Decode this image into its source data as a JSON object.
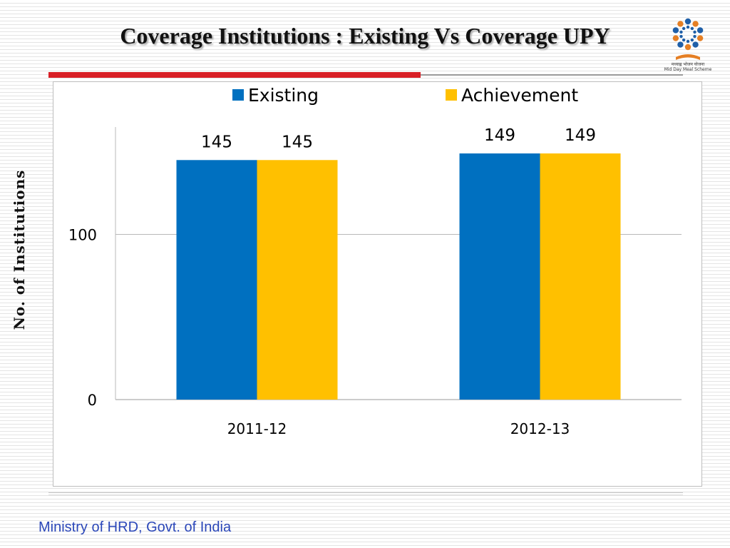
{
  "slide": {
    "title": "Coverage Institutions : Existing Vs Coverage UPY",
    "footer": "Ministry of HRD, Govt. of India",
    "logo": {
      "icon": "mid-day-meal-logo-icon",
      "caption_hindi": "मध्याह्न भोजन योजना",
      "caption_english": "Mid Day Meal Scheme"
    }
  },
  "colors": {
    "existing": "#0070c0",
    "achievement": "#ffc000",
    "title_rule": "#d81f26",
    "footer": "#2b47b8"
  },
  "chart_data": {
    "type": "bar",
    "categories": [
      "2011-12",
      "2012-13"
    ],
    "series": [
      {
        "name": "Existing",
        "values": [
          145,
          149
        ],
        "color": "#0070c0"
      },
      {
        "name": "Achievement",
        "values": [
          145,
          149
        ],
        "color": "#ffc000"
      }
    ],
    "title": "",
    "xlabel": "",
    "ylabel": "No. of Institutions",
    "ylim": [
      0,
      165
    ],
    "yticks": [
      0,
      100
    ],
    "gridlines": true,
    "data_labels": true,
    "legend_position": "top"
  }
}
